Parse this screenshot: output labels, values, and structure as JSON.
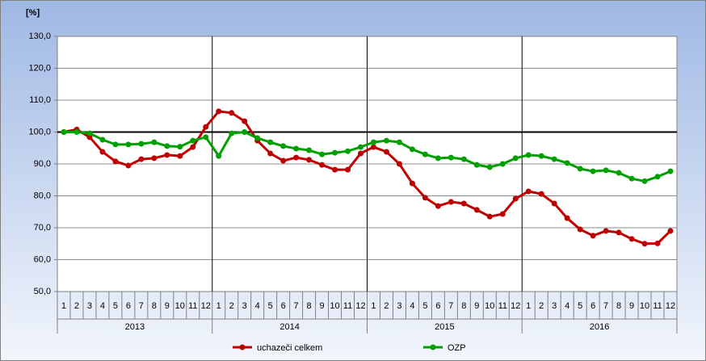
{
  "chart_data": {
    "type": "line",
    "y_label": "[%]",
    "categories": [
      "1",
      "2",
      "3",
      "4",
      "5",
      "6",
      "7",
      "8",
      "9",
      "10",
      "11",
      "12",
      "1",
      "2",
      "3",
      "4",
      "5",
      "6",
      "7",
      "8",
      "9",
      "10",
      "11",
      "12",
      "1",
      "2",
      "3",
      "4",
      "5",
      "6",
      "7",
      "8",
      "9",
      "10",
      "11",
      "12",
      "1",
      "2",
      "3",
      "4",
      "5",
      "6",
      "7",
      "8",
      "9",
      "10",
      "11",
      "12"
    ],
    "years": [
      "2013",
      "2014",
      "2015",
      "2016"
    ],
    "series": [
      {
        "name": "uchazeči celkem",
        "color": "#c00000",
        "values": [
          100,
          100.8,
          98.4,
          93.8,
          90.8,
          89.5,
          91.5,
          91.8,
          92.8,
          92.5,
          95.3,
          101.6,
          106.5,
          106,
          103.4,
          97.3,
          93.3,
          91,
          92,
          91.3,
          89.7,
          88.2,
          88.2,
          93.3,
          95.3,
          93.8,
          90,
          83.9,
          79.4,
          76.8,
          78.1,
          77.6,
          75.6,
          73.5,
          74.3,
          79.1,
          81.4,
          80.6,
          77.6,
          73,
          69.5,
          67.5,
          69,
          68.5,
          66.5,
          65,
          65.1,
          69
        ]
      },
      {
        "name": "OZP",
        "color": "#00a000",
        "values": [
          100,
          100,
          99.6,
          97.6,
          96.1,
          96.1,
          96.3,
          96.8,
          95.6,
          95.4,
          97.3,
          98.4,
          92.5,
          99.6,
          100,
          98.1,
          96.8,
          95.6,
          94.8,
          94.3,
          93,
          93.5,
          94,
          95.3,
          96.8,
          97.3,
          96.8,
          94.6,
          93,
          91.8,
          92,
          91.5,
          89.7,
          89,
          90,
          91.8,
          92.8,
          92.5,
          91.5,
          90.3,
          88.5,
          87.7,
          88,
          87.2,
          85.4,
          84.6,
          86,
          87.7
        ]
      }
    ],
    "reference_line": 100,
    "ylim": [
      50,
      130
    ],
    "yticks": [
      {
        "value": 50,
        "label": "50,0"
      },
      {
        "value": 60,
        "label": "60,0"
      },
      {
        "value": 70,
        "label": "70,0"
      },
      {
        "value": 80,
        "label": "80,0"
      },
      {
        "value": 90,
        "label": "90,0"
      },
      {
        "value": 100,
        "label": "100,0"
      },
      {
        "value": 110,
        "label": "110,0"
      },
      {
        "value": 120,
        "label": "120,0"
      },
      {
        "value": 130,
        "label": "130,0"
      }
    ],
    "grid": true
  }
}
